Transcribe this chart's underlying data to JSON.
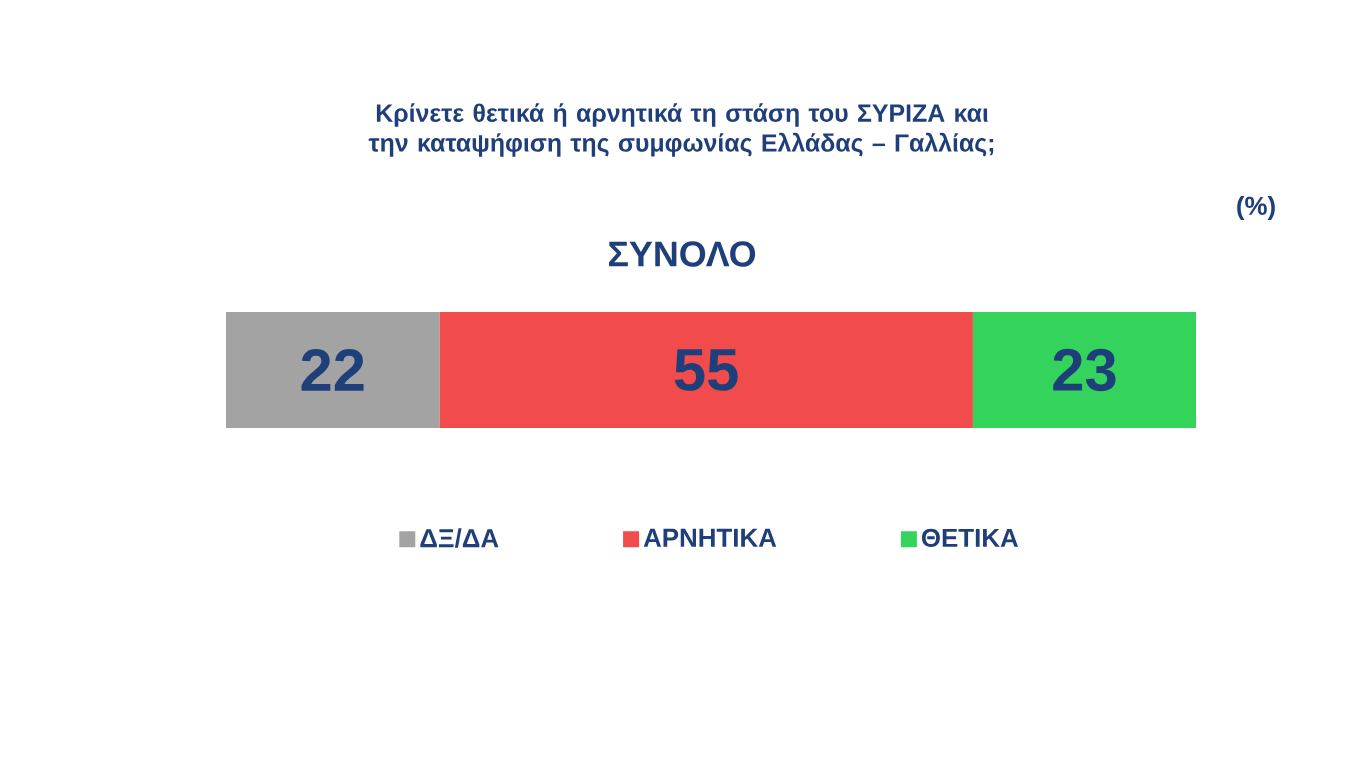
{
  "chart_data": {
    "type": "bar",
    "orientation": "horizontal",
    "stacked": true,
    "title": "Κρίνετε θετικά ή αρνητικά τη στάση του ΣΥΡΙΖΑ και την καταψήφιση της συμφωνίας Ελλάδας – Γαλλίας;",
    "subtitle": "ΣΥΝΟΛΟ",
    "annotations": [
      "(%)"
    ],
    "categories": [
      null
    ],
    "series": [
      {
        "name": "ΔΞ/ΔΑ",
        "color": "#a3a3a3",
        "values": [
          22
        ]
      },
      {
        "name": "ΑΡΝΗΤΙΚΑ",
        "color": "#f24b4b",
        "values": [
          55
        ]
      },
      {
        "name": "ΘΕΤΙΚΑ",
        "color": "#34d45c",
        "values": [
          23
        ]
      }
    ],
    "data_labels": true,
    "legend": "bottom",
    "tick_labels": false
  }
}
